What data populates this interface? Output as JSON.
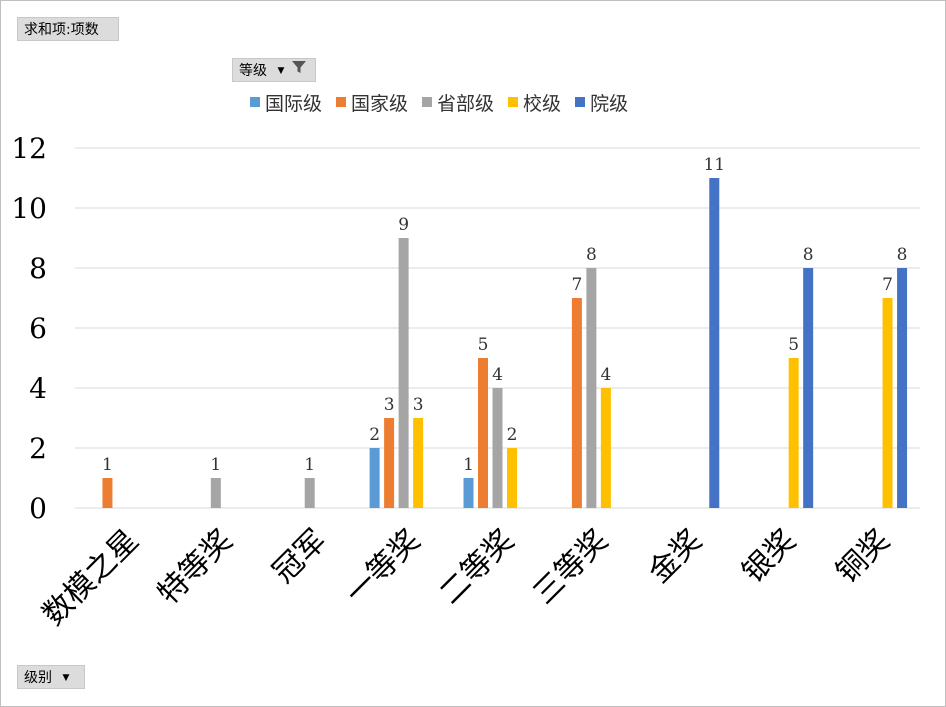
{
  "pivot": {
    "values_button": "求和项:项数",
    "column_field_button": "等级",
    "row_field_button": "级别"
  },
  "chart_data": {
    "type": "bar",
    "categories": [
      "数模之星",
      "特等奖",
      "冠军",
      "一等奖",
      "二等奖",
      "三等奖",
      "金奖",
      "银奖",
      "铜奖"
    ],
    "series": [
      {
        "name": "国际级",
        "color": "#5b9bd5",
        "values": [
          null,
          null,
          null,
          2,
          1,
          null,
          null,
          null,
          null
        ]
      },
      {
        "name": "国家级",
        "color": "#ed7d31",
        "values": [
          1,
          null,
          null,
          3,
          5,
          7,
          null,
          null,
          null
        ]
      },
      {
        "name": "省部级",
        "color": "#a5a5a5",
        "values": [
          null,
          1,
          1,
          9,
          4,
          8,
          null,
          null,
          null
        ]
      },
      {
        "name": "校级",
        "color": "#ffc000",
        "values": [
          null,
          null,
          null,
          3,
          2,
          4,
          null,
          5,
          7
        ]
      },
      {
        "name": "院级",
        "color": "#4472c4",
        "values": [
          null,
          null,
          null,
          null,
          null,
          null,
          11,
          8,
          8
        ]
      }
    ],
    "yticks": [
      "0",
      "2",
      "4",
      "6",
      "8",
      "10",
      "12"
    ],
    "ylim": [
      0,
      12
    ],
    "grid": true,
    "legend": "top-center",
    "title": "",
    "xlabel": "",
    "ylabel": ""
  }
}
